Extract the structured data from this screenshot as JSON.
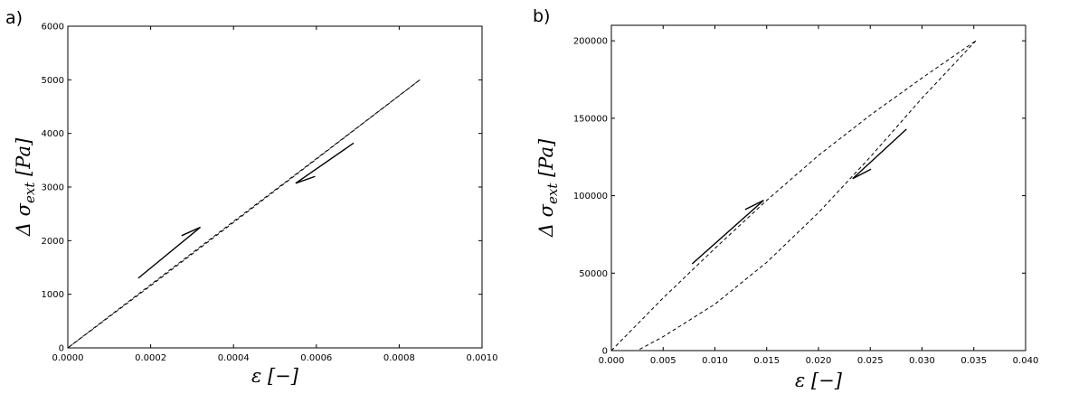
{
  "chart_data": [
    {
      "panel": "a)",
      "type": "line",
      "xlabel": "ε [−]",
      "ylabel": "Δ σ_ext [Pa]",
      "xlim": [
        0,
        0.001
      ],
      "ylim": [
        0,
        6000
      ],
      "xticks": [
        "0.0000",
        "0.0002",
        "0.0004",
        "0.0006",
        "0.0008",
        "0.0010"
      ],
      "xtick_values": [
        0,
        0.0002,
        0.0004,
        0.0006,
        0.0008,
        0.001
      ],
      "yticks": [
        "0",
        "1000",
        "2000",
        "3000",
        "4000",
        "5000",
        "6000"
      ],
      "ytick_values": [
        0,
        1000,
        2000,
        3000,
        4000,
        5000,
        6000
      ],
      "grid": false,
      "series": [
        {
          "line_style": "dashed",
          "x": [
            0,
            0.0002,
            0.0004,
            0.0006,
            0.00085
          ],
          "y": [
            0,
            1180,
            2360,
            3530,
            5000
          ]
        },
        {
          "line_style": "dashed",
          "x": [
            0.00085,
            0.0006,
            0.0004,
            0.0002,
            0
          ],
          "y": [
            5000,
            3520,
            2340,
            1160,
            0
          ]
        }
      ],
      "annotations": [
        {
          "type": "arrow",
          "direction": "loading",
          "from": [
            0.00017,
            1300
          ],
          "to": [
            0.00032,
            2250
          ]
        },
        {
          "type": "arrow",
          "direction": "unloading",
          "from": [
            0.00069,
            3820
          ],
          "to": [
            0.00055,
            3070
          ]
        }
      ]
    },
    {
      "panel": "b)",
      "type": "line",
      "xlabel": "ε [−]",
      "ylabel": "Δ σ_ext [Pa]",
      "xlim": [
        0,
        0.04
      ],
      "ylim": [
        0,
        210000
      ],
      "xticks": [
        "0.000",
        "0.005",
        "0.010",
        "0.015",
        "0.020",
        "0.025",
        "0.030",
        "0.035",
        "0.040"
      ],
      "xtick_values": [
        0,
        0.005,
        0.01,
        0.015,
        0.02,
        0.025,
        0.03,
        0.035,
        0.04
      ],
      "yticks": [
        "0",
        "50000",
        "100000",
        "150000",
        "200000"
      ],
      "ytick_values": [
        0,
        50000,
        100000,
        150000,
        200000
      ],
      "grid": false,
      "series": [
        {
          "line_style": "dashed",
          "x": [
            0,
            0.005,
            0.01,
            0.015,
            0.02,
            0.025,
            0.03,
            0.0352
          ],
          "y": [
            0,
            34000,
            66000,
            97000,
            126000,
            152000,
            176000,
            200000
          ]
        },
        {
          "line_style": "dashed",
          "x": [
            0.0352,
            0.03,
            0.025,
            0.02,
            0.015,
            0.01,
            0.005,
            0.0025
          ],
          "y": [
            200000,
            163000,
            125000,
            89000,
            57000,
            30000,
            9000,
            0
          ]
        }
      ],
      "annotations": [
        {
          "type": "arrow",
          "direction": "loading",
          "from": [
            0.0078,
            56000
          ],
          "to": [
            0.0147,
            97000
          ]
        },
        {
          "type": "arrow",
          "direction": "unloading",
          "from": [
            0.0285,
            143000
          ],
          "to": [
            0.0233,
            111000
          ]
        }
      ]
    }
  ]
}
